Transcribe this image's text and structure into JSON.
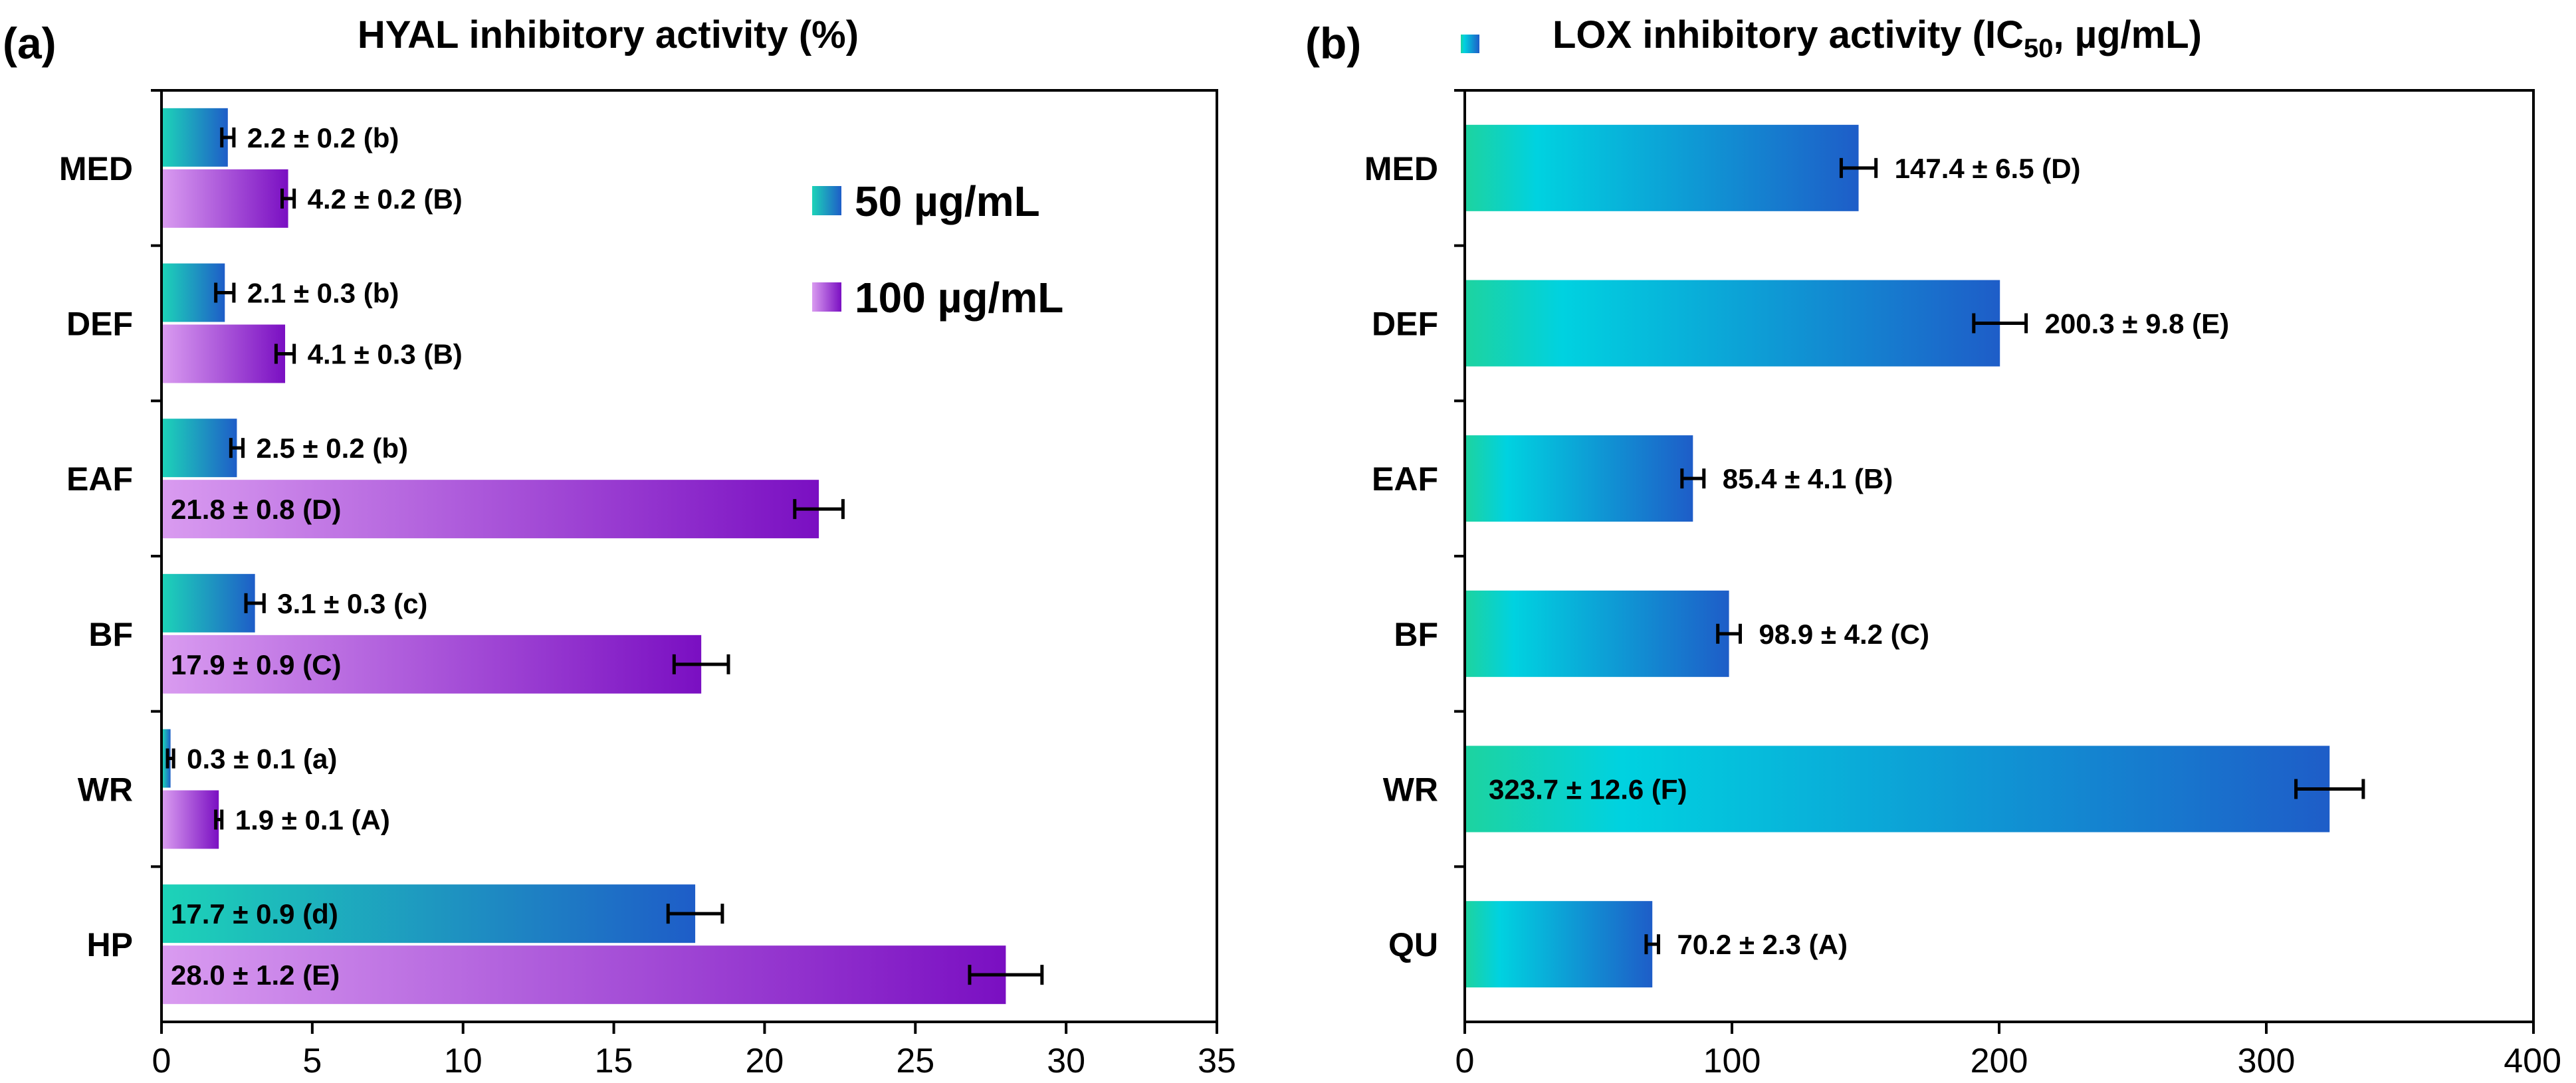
{
  "chart_data": [
    {
      "type": "bar",
      "orientation": "horizontal",
      "panel_label": "(a)",
      "title": "HYAL inhibitory activity (%)",
      "categories": [
        "MED",
        "DEF",
        "EAF",
        "BF",
        "WR",
        "HP"
      ],
      "xlim": [
        0,
        35
      ],
      "xticks": [
        "0",
        "5",
        "10",
        "15",
        "20",
        "25",
        "30",
        "35"
      ],
      "grid": false,
      "legend_position": "top-right",
      "series": [
        {
          "name": "50 µg/mL",
          "color_start": "#1DD3B8",
          "color_end": "#1E5DC8",
          "values": [
            2.2,
            2.1,
            2.5,
            3.1,
            0.3,
            17.7
          ],
          "errors": [
            0.2,
            0.3,
            0.2,
            0.3,
            0.1,
            0.9
          ],
          "labels": [
            "2.2 ± 0.2 (b)",
            "2.1 ± 0.3 (b)",
            "2.5 ± 0.2 (b)",
            "3.1 ± 0.3 (c)",
            "0.3 ± 0.1 (a)",
            "17.7 ± 0.9 (d)"
          ]
        },
        {
          "name": "100 µg/mL",
          "color_start": "#D99BF0",
          "color_end": "#7A0FC2",
          "values": [
            4.2,
            4.1,
            21.8,
            17.9,
            1.9,
            28.0
          ],
          "errors": [
            0.2,
            0.3,
            0.8,
            0.9,
            0.1,
            1.2
          ],
          "labels": [
            "4.2 ± 0.2 (B)",
            "4.1 ± 0.3 (B)",
            "21.8 ± 0.8 (D)",
            "17.9 ± 0.9 (C)",
            "1.9 ± 0.1 (A)",
            "28.0 ± 1.2 (E)"
          ]
        }
      ]
    },
    {
      "type": "bar",
      "orientation": "horizontal",
      "panel_label": "(b)",
      "title_main": "LOX inhibitory activity (IC",
      "title_sub": "50",
      "title_tail": ", µg/mL)",
      "categories": [
        "MED",
        "DEF",
        "EAF",
        "BF",
        "WR",
        "QU"
      ],
      "xlim": [
        0,
        400
      ],
      "xticks": [
        "0",
        "100",
        "200",
        "300",
        "400"
      ],
      "grid": false,
      "color_start": "#1DD3A0",
      "color_mid": "#00D2E0",
      "color_end": "#1E5DC8",
      "values": [
        147.4,
        200.3,
        85.4,
        98.9,
        323.7,
        70.2
      ],
      "errors": [
        6.5,
        9.8,
        4.1,
        4.2,
        12.6,
        2.3
      ],
      "labels": [
        "147.4 ± 6.5 (D)",
        "200.3 ± 9.8 (E)",
        "85.4 ± 4.1 (B)",
        "98.9 ± 4.2 (C)",
        "323.7 ± 12.6 (F)",
        "70.2 ± 2.3 (A)"
      ]
    }
  ]
}
